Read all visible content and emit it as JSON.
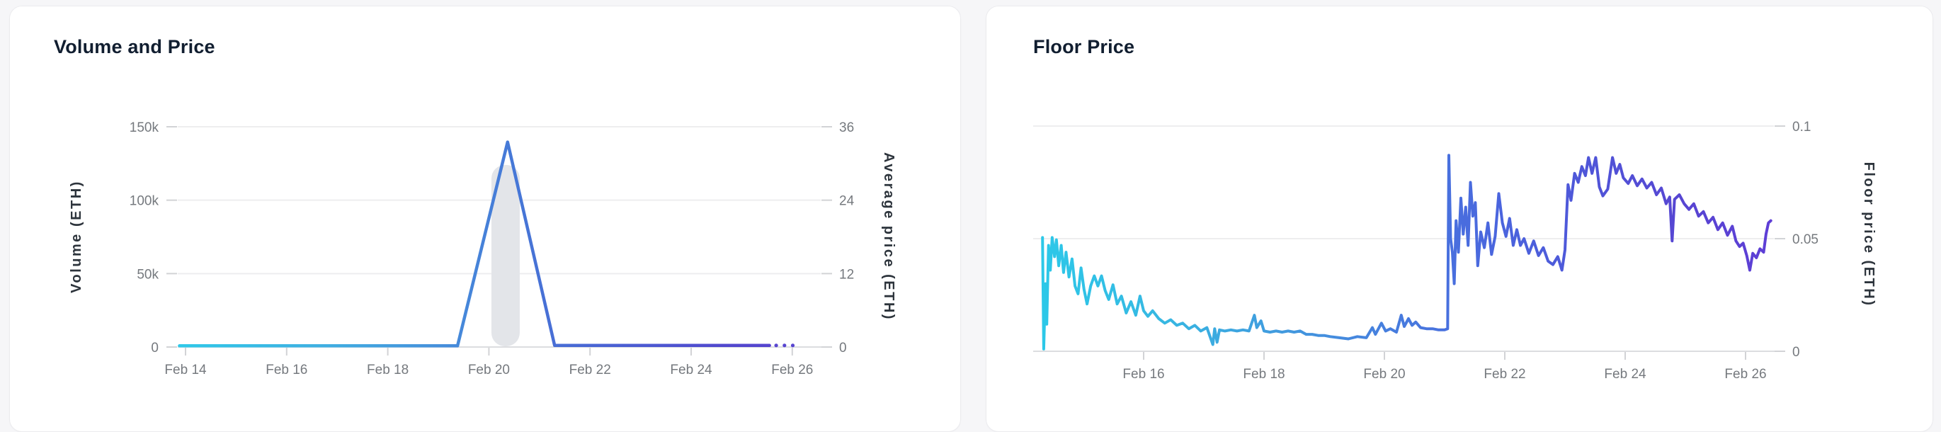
{
  "cards": [
    {
      "title": "Volume and Price"
    },
    {
      "title": "Floor Price"
    }
  ],
  "colors": {
    "card_background": "#ffffff",
    "card_border": "#ebebee",
    "page_background": "#f6f6f8",
    "title_text": "#111e30",
    "tick_text": "#75797e",
    "axis_title_text": "#2d343c",
    "gridline": "#eeeeef",
    "axis_line": "#dcdde0",
    "tick_mark": "#d2d3d6",
    "volume_bar": "#e3e5e9",
    "line_gradient_start_cyan": "#2cc9e9",
    "line_gradient_mid_blue": "#4678d7",
    "line_gradient_end_indigo": "#5c40d2"
  },
  "chart_data": [
    {
      "type": "line+bar",
      "title": "Volume and Price",
      "legend_position": "none",
      "grid": true,
      "x_axis": {
        "tick_labels": [
          "Feb 14",
          "Feb 16",
          "Feb 18",
          "Feb 20",
          "Feb 22",
          "Feb 24",
          "Feb 26"
        ],
        "tick_days": [
          14,
          16,
          18,
          20,
          22,
          24,
          26
        ],
        "xlim": [
          13.85,
          26.75
        ]
      },
      "left_y_axis": {
        "title": "Volume (ETH)",
        "tick_labels": [
          "150k",
          "100k",
          "50k",
          "0"
        ],
        "tick_values": [
          150000,
          100000,
          50000,
          0
        ],
        "ylim": [
          0,
          150000
        ]
      },
      "right_y_axis": {
        "title": "Average price (ETH)",
        "tick_labels": [
          "36",
          "24",
          "12",
          "0"
        ],
        "tick_values": [
          36,
          24,
          12,
          0
        ],
        "ylim": [
          0,
          36
        ]
      },
      "volume_bars": {
        "bar_width_days": 0.56,
        "bars": [
          {
            "day": 20.33,
            "volume_eth": 124000
          }
        ]
      },
      "avg_price_line": {
        "peak": {
          "day": 20.37,
          "avg_price_eth": 33.5
        },
        "points": [
          [
            13.88,
            0.2
          ],
          [
            14.5,
            0.2
          ],
          [
            15.0,
            0.2
          ],
          [
            15.5,
            0.2
          ],
          [
            16.0,
            0.2
          ],
          [
            16.5,
            0.2
          ],
          [
            17.0,
            0.2
          ],
          [
            17.5,
            0.2
          ],
          [
            18.0,
            0.2
          ],
          [
            18.5,
            0.2
          ],
          [
            19.0,
            0.2
          ],
          [
            19.38,
            0.2
          ],
          [
            20.37,
            33.5
          ],
          [
            21.3,
            0.25
          ],
          [
            22.0,
            0.25
          ],
          [
            23.0,
            0.25
          ],
          [
            24.0,
            0.25
          ],
          [
            25.0,
            0.25
          ],
          [
            25.55,
            0.25
          ]
        ],
        "dotted_tail": [
          [
            25.68,
            0.25
          ],
          [
            26.08,
            0.25
          ]
        ],
        "gradient_stops": [
          [
            0,
            "#2fc9e9"
          ],
          [
            0.22,
            "#3fb0e2"
          ],
          [
            0.4,
            "#4691dc"
          ],
          [
            0.52,
            "#4678d7"
          ],
          [
            0.68,
            "#4a60d3"
          ],
          [
            0.85,
            "#5148ce"
          ],
          [
            1,
            "#5a41d0"
          ]
        ]
      }
    },
    {
      "type": "line",
      "title": "Floor Price",
      "legend_position": "none",
      "grid": true,
      "x_axis": {
        "tick_labels": [
          "Feb 16",
          "Feb 18",
          "Feb 20",
          "Feb 22",
          "Feb 24",
          "Feb 26"
        ],
        "tick_days": [
          16,
          18,
          20,
          22,
          24,
          26
        ],
        "xlim": [
          14.25,
          26.6
        ]
      },
      "y_axis": {
        "title": "Floor price (ETH)",
        "tick_labels": [
          "0.1",
          "0.05",
          "0"
        ],
        "tick_values": [
          0.1,
          0.05,
          0
        ],
        "ylim": [
          0,
          0.107
        ]
      },
      "floor_price_line": {
        "points": [
          [
            14.32,
            0.0505
          ],
          [
            14.34,
            0.001
          ],
          [
            14.37,
            0.03
          ],
          [
            14.39,
            0.012
          ],
          [
            14.42,
            0.047
          ],
          [
            14.45,
            0.036
          ],
          [
            14.48,
            0.0505
          ],
          [
            14.52,
            0.042
          ],
          [
            14.55,
            0.0495
          ],
          [
            14.59,
            0.038
          ],
          [
            14.63,
            0.047
          ],
          [
            14.67,
            0.035
          ],
          [
            14.71,
            0.044
          ],
          [
            14.76,
            0.033
          ],
          [
            14.81,
            0.041
          ],
          [
            14.86,
            0.029
          ],
          [
            14.91,
            0.0255
          ],
          [
            14.96,
            0.037
          ],
          [
            15.01,
            0.0275
          ],
          [
            15.06,
            0.021
          ],
          [
            15.12,
            0.029
          ],
          [
            15.18,
            0.0335
          ],
          [
            15.24,
            0.029
          ],
          [
            15.3,
            0.0335
          ],
          [
            15.36,
            0.027
          ],
          [
            15.42,
            0.023
          ],
          [
            15.49,
            0.0295
          ],
          [
            15.56,
            0.021
          ],
          [
            15.63,
            0.0245
          ],
          [
            15.71,
            0.017
          ],
          [
            15.79,
            0.022
          ],
          [
            15.87,
            0.016
          ],
          [
            15.94,
            0.0245
          ],
          [
            16.0,
            0.018
          ],
          [
            16.07,
            0.0155
          ],
          [
            16.15,
            0.018
          ],
          [
            16.25,
            0.0145
          ],
          [
            16.35,
            0.0125
          ],
          [
            16.45,
            0.014
          ],
          [
            16.55,
            0.0115
          ],
          [
            16.65,
            0.0125
          ],
          [
            16.75,
            0.01
          ],
          [
            16.85,
            0.0115
          ],
          [
            16.95,
            0.009
          ],
          [
            17.05,
            0.0105
          ],
          [
            17.15,
            0.003
          ],
          [
            17.18,
            0.01
          ],
          [
            17.22,
            0.004
          ],
          [
            17.26,
            0.0095
          ],
          [
            17.35,
            0.009
          ],
          [
            17.45,
            0.0095
          ],
          [
            17.55,
            0.009
          ],
          [
            17.65,
            0.0095
          ],
          [
            17.75,
            0.009
          ],
          [
            17.84,
            0.016
          ],
          [
            17.88,
            0.0105
          ],
          [
            17.95,
            0.0135
          ],
          [
            18.0,
            0.009
          ],
          [
            18.1,
            0.0085
          ],
          [
            18.2,
            0.009
          ],
          [
            18.3,
            0.0085
          ],
          [
            18.4,
            0.009
          ],
          [
            18.5,
            0.0085
          ],
          [
            18.6,
            0.009
          ],
          [
            18.7,
            0.0075
          ],
          [
            18.8,
            0.0075
          ],
          [
            18.9,
            0.007
          ],
          [
            19.0,
            0.007
          ],
          [
            19.1,
            0.0065
          ],
          [
            19.25,
            0.006
          ],
          [
            19.4,
            0.0055
          ],
          [
            19.55,
            0.0065
          ],
          [
            19.7,
            0.006
          ],
          [
            19.8,
            0.0105
          ],
          [
            19.85,
            0.0075
          ],
          [
            19.95,
            0.0125
          ],
          [
            20.02,
            0.009
          ],
          [
            20.1,
            0.01
          ],
          [
            20.2,
            0.0085
          ],
          [
            20.28,
            0.016
          ],
          [
            20.33,
            0.011
          ],
          [
            20.4,
            0.0145
          ],
          [
            20.46,
            0.0115
          ],
          [
            20.52,
            0.013
          ],
          [
            20.6,
            0.0105
          ],
          [
            20.7,
            0.01
          ],
          [
            20.8,
            0.01
          ],
          [
            20.9,
            0.0095
          ],
          [
            21.0,
            0.0095
          ],
          [
            21.05,
            0.01
          ],
          [
            21.07,
            0.087
          ],
          [
            21.1,
            0.05
          ],
          [
            21.13,
            0.044
          ],
          [
            21.16,
            0.03
          ],
          [
            21.19,
            0.058
          ],
          [
            21.23,
            0.044
          ],
          [
            21.27,
            0.068
          ],
          [
            21.31,
            0.052
          ],
          [
            21.35,
            0.064
          ],
          [
            21.39,
            0.047
          ],
          [
            21.43,
            0.075
          ],
          [
            21.47,
            0.06
          ],
          [
            21.51,
            0.066
          ],
          [
            21.55,
            0.038
          ],
          [
            21.6,
            0.053
          ],
          [
            21.66,
            0.046
          ],
          [
            21.72,
            0.057
          ],
          [
            21.78,
            0.043
          ],
          [
            21.84,
            0.051
          ],
          [
            21.9,
            0.07
          ],
          [
            21.96,
            0.057
          ],
          [
            22.02,
            0.051
          ],
          [
            22.08,
            0.059
          ],
          [
            22.14,
            0.047
          ],
          [
            22.2,
            0.054
          ],
          [
            22.26,
            0.047
          ],
          [
            22.32,
            0.05
          ],
          [
            22.4,
            0.0435
          ],
          [
            22.48,
            0.049
          ],
          [
            22.56,
            0.0425
          ],
          [
            22.64,
            0.046
          ],
          [
            22.72,
            0.04
          ],
          [
            22.8,
            0.0385
          ],
          [
            22.88,
            0.042
          ],
          [
            22.95,
            0.036
          ],
          [
            23.0,
            0.045
          ],
          [
            23.05,
            0.074
          ],
          [
            23.1,
            0.067
          ],
          [
            23.16,
            0.079
          ],
          [
            23.22,
            0.075
          ],
          [
            23.28,
            0.082
          ],
          [
            23.34,
            0.078
          ],
          [
            23.39,
            0.086
          ],
          [
            23.45,
            0.079
          ],
          [
            23.51,
            0.086
          ],
          [
            23.57,
            0.073
          ],
          [
            23.63,
            0.069
          ],
          [
            23.71,
            0.072
          ],
          [
            23.79,
            0.086
          ],
          [
            23.85,
            0.079
          ],
          [
            23.91,
            0.083
          ],
          [
            23.97,
            0.077
          ],
          [
            24.05,
            0.0745
          ],
          [
            24.12,
            0.078
          ],
          [
            24.2,
            0.0735
          ],
          [
            24.28,
            0.0765
          ],
          [
            24.36,
            0.0725
          ],
          [
            24.44,
            0.075
          ],
          [
            24.52,
            0.0695
          ],
          [
            24.6,
            0.0725
          ],
          [
            24.68,
            0.0655
          ],
          [
            24.74,
            0.0685
          ],
          [
            24.78,
            0.049
          ],
          [
            24.82,
            0.0675
          ],
          [
            24.9,
            0.0695
          ],
          [
            24.98,
            0.0655
          ],
          [
            25.06,
            0.063
          ],
          [
            25.14,
            0.0655
          ],
          [
            25.22,
            0.06
          ],
          [
            25.3,
            0.062
          ],
          [
            25.38,
            0.057
          ],
          [
            25.46,
            0.0595
          ],
          [
            25.54,
            0.054
          ],
          [
            25.62,
            0.057
          ],
          [
            25.7,
            0.0515
          ],
          [
            25.78,
            0.0555
          ],
          [
            25.84,
            0.049
          ],
          [
            25.9,
            0.0465
          ],
          [
            25.96,
            0.048
          ],
          [
            26.02,
            0.0425
          ],
          [
            26.07,
            0.036
          ],
          [
            26.12,
            0.0435
          ],
          [
            26.18,
            0.0415
          ],
          [
            26.24,
            0.0455
          ],
          [
            26.3,
            0.044
          ],
          [
            26.34,
            0.052
          ],
          [
            26.38,
            0.057
          ],
          [
            26.42,
            0.058
          ]
        ],
        "gradient_stops": [
          [
            0,
            "#2bc9e9"
          ],
          [
            0.18,
            "#37b7e2"
          ],
          [
            0.35,
            "#4297de"
          ],
          [
            0.5,
            "#477ade"
          ],
          [
            0.62,
            "#4a66de"
          ],
          [
            0.75,
            "#4f55d8"
          ],
          [
            0.88,
            "#5745d2"
          ],
          [
            1,
            "#5e3ed6"
          ]
        ]
      }
    }
  ]
}
